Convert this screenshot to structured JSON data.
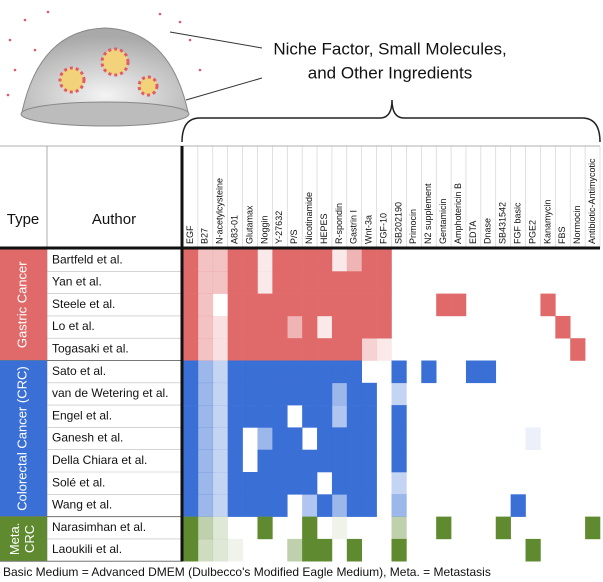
{
  "header": {
    "title_lines": [
      "Niche Factor, Small Molecules,",
      "and Other Ingredients"
    ]
  },
  "table": {
    "type_label": "Type",
    "author_label": "Author",
    "columns": [
      "EGF",
      "B27",
      "N-acetylcysteine",
      "A83-01",
      "Glutamax",
      "Noggin",
      "Y-27632",
      "P/S",
      "Nicotinamide",
      "HEPES",
      "R-spondin",
      "Gastrin I",
      "Wnt-3a",
      "FGF-10",
      "SB202190",
      "Primocin",
      "N2 supplement",
      "Gentamicin",
      "Amphotericin B",
      "EDTA",
      "Dnase",
      "SB431542",
      "FGF basic",
      "PGE2",
      "Kanamycin",
      "FBS",
      "Normocin",
      "Antibiotic-Antimycotic"
    ],
    "groups": [
      {
        "label_lines": [
          "Gastric Cancer"
        ],
        "color": "#e06a6a",
        "rows": [
          {
            "author": "Bartfeld et al.",
            "values": [
              1,
              0.4,
              0.4,
              1,
              1,
              0.15,
              1,
              1,
              1,
              1,
              0.15,
              0.5,
              1,
              1,
              0,
              0,
              0,
              0,
              0,
              0,
              0,
              0,
              0,
              0,
              0,
              0,
              0,
              0
            ]
          },
          {
            "author": "Yan et al.",
            "values": [
              1,
              0.4,
              0.4,
              1,
              1,
              0.15,
              1,
              1,
              1,
              1,
              1,
              1,
              1,
              1,
              0,
              0,
              0,
              0,
              0,
              0,
              0,
              0,
              0,
              0,
              0,
              0,
              0,
              0
            ]
          },
          {
            "author": "Steele et al.",
            "values": [
              1,
              0.4,
              0,
              1,
              1,
              1,
              1,
              1,
              1,
              1,
              1,
              1,
              1,
              1,
              0,
              0,
              0,
              1,
              1,
              0,
              0,
              0,
              0,
              0,
              1,
              0,
              0,
              0
            ]
          },
          {
            "author": "Lo et al.",
            "values": [
              1,
              0.4,
              0.2,
              1,
              1,
              1,
              1,
              0.5,
              1,
              0.15,
              1,
              1,
              1,
              1,
              0,
              0,
              0,
              0,
              0,
              0,
              0,
              0,
              0,
              0,
              0,
              1,
              0,
              0
            ]
          },
          {
            "author": "Togasaki et al.",
            "values": [
              1,
              0.4,
              0.2,
              1,
              1,
              1,
              1,
              1,
              1,
              1,
              1,
              1,
              0.3,
              0.15,
              0,
              0,
              0,
              0,
              0,
              0,
              0,
              0,
              0,
              0,
              0,
              0,
              1,
              0
            ]
          }
        ]
      },
      {
        "label_lines": [
          "Colorectal Cancer (CRC)"
        ],
        "color": "#3a6fd6",
        "rows": [
          {
            "author": "Sato et al.",
            "values": [
              1,
              0.5,
              0.3,
              1,
              1,
              1,
              1,
              1,
              1,
              1,
              1,
              1,
              0,
              0,
              1,
              0,
              1,
              0,
              0,
              1,
              1,
              0,
              0,
              0,
              0,
              0,
              0,
              0
            ]
          },
          {
            "author": "van de Wetering et al.",
            "values": [
              1,
              0.5,
              0.3,
              1,
              1,
              1,
              1,
              1,
              1,
              1,
              0.5,
              1,
              1,
              0,
              0.3,
              0,
              0,
              0,
              0,
              0,
              0,
              0,
              0,
              0,
              0,
              0,
              0,
              0
            ]
          },
          {
            "author": "Engel et al.",
            "values": [
              1,
              0.5,
              0.3,
              1,
              1,
              1,
              1,
              0,
              1,
              1,
              0.4,
              1,
              1,
              0,
              1,
              0,
              0,
              0,
              0,
              0,
              0,
              0,
              0,
              0,
              0,
              0,
              0,
              0
            ]
          },
          {
            "author": "Ganesh et al.",
            "values": [
              1,
              0.5,
              0.3,
              1,
              0,
              0.5,
              1,
              1,
              0,
              1,
              1,
              1,
              1,
              0,
              1,
              0,
              0,
              0,
              0,
              0,
              0,
              0,
              0,
              0.1,
              0,
              0,
              0,
              0
            ]
          },
          {
            "author": "Della Chiara et al.",
            "values": [
              1,
              0.5,
              0.3,
              1,
              0,
              1,
              1,
              1,
              1,
              1,
              1,
              1,
              1,
              0,
              1,
              0,
              0,
              0,
              0,
              0,
              0,
              0,
              0,
              0,
              0,
              0,
              0,
              0
            ]
          },
          {
            "author": "Solé et al.",
            "values": [
              1,
              0.5,
              0.3,
              1,
              1,
              1,
              1,
              1,
              1,
              0,
              1,
              1,
              1,
              0,
              0.3,
              0,
              0,
              0,
              0,
              0,
              0,
              0,
              0,
              0,
              0,
              0,
              0,
              0
            ]
          },
          {
            "author": "Wang et al.",
            "values": [
              1,
              0.5,
              0.3,
              1,
              1,
              1,
              1,
              0,
              0.4,
              1,
              0.5,
              1,
              1,
              0,
              0.5,
              0,
              0,
              0,
              0,
              0,
              0,
              0,
              1,
              0,
              0,
              0,
              0,
              0
            ]
          }
        ]
      },
      {
        "label_lines": [
          "Meta.",
          "CRC"
        ],
        "color": "#5f8a30",
        "rows": [
          {
            "author": "Narasimhan et al.",
            "values": [
              1,
              0.4,
              0.2,
              0,
              0,
              1,
              0,
              0,
              1,
              0,
              0.1,
              0,
              0,
              0,
              0.4,
              0,
              0,
              1,
              0,
              0,
              0,
              1,
              0,
              0,
              0,
              0,
              0,
              1
            ]
          },
          {
            "author": "Laoukili et al.",
            "values": [
              1,
              0.3,
              0.2,
              0.1,
              0,
              0,
              0,
              0.4,
              1,
              1,
              0,
              1,
              0,
              0,
              1,
              0,
              0,
              0,
              0,
              0,
              0,
              0,
              0,
              1,
              0,
              0,
              0,
              0
            ]
          }
        ]
      }
    ]
  },
  "footer": "Basic Medium = Advanced DMEM (Dulbecco's Modified Eagle Medium), Meta. = Metastasis"
}
